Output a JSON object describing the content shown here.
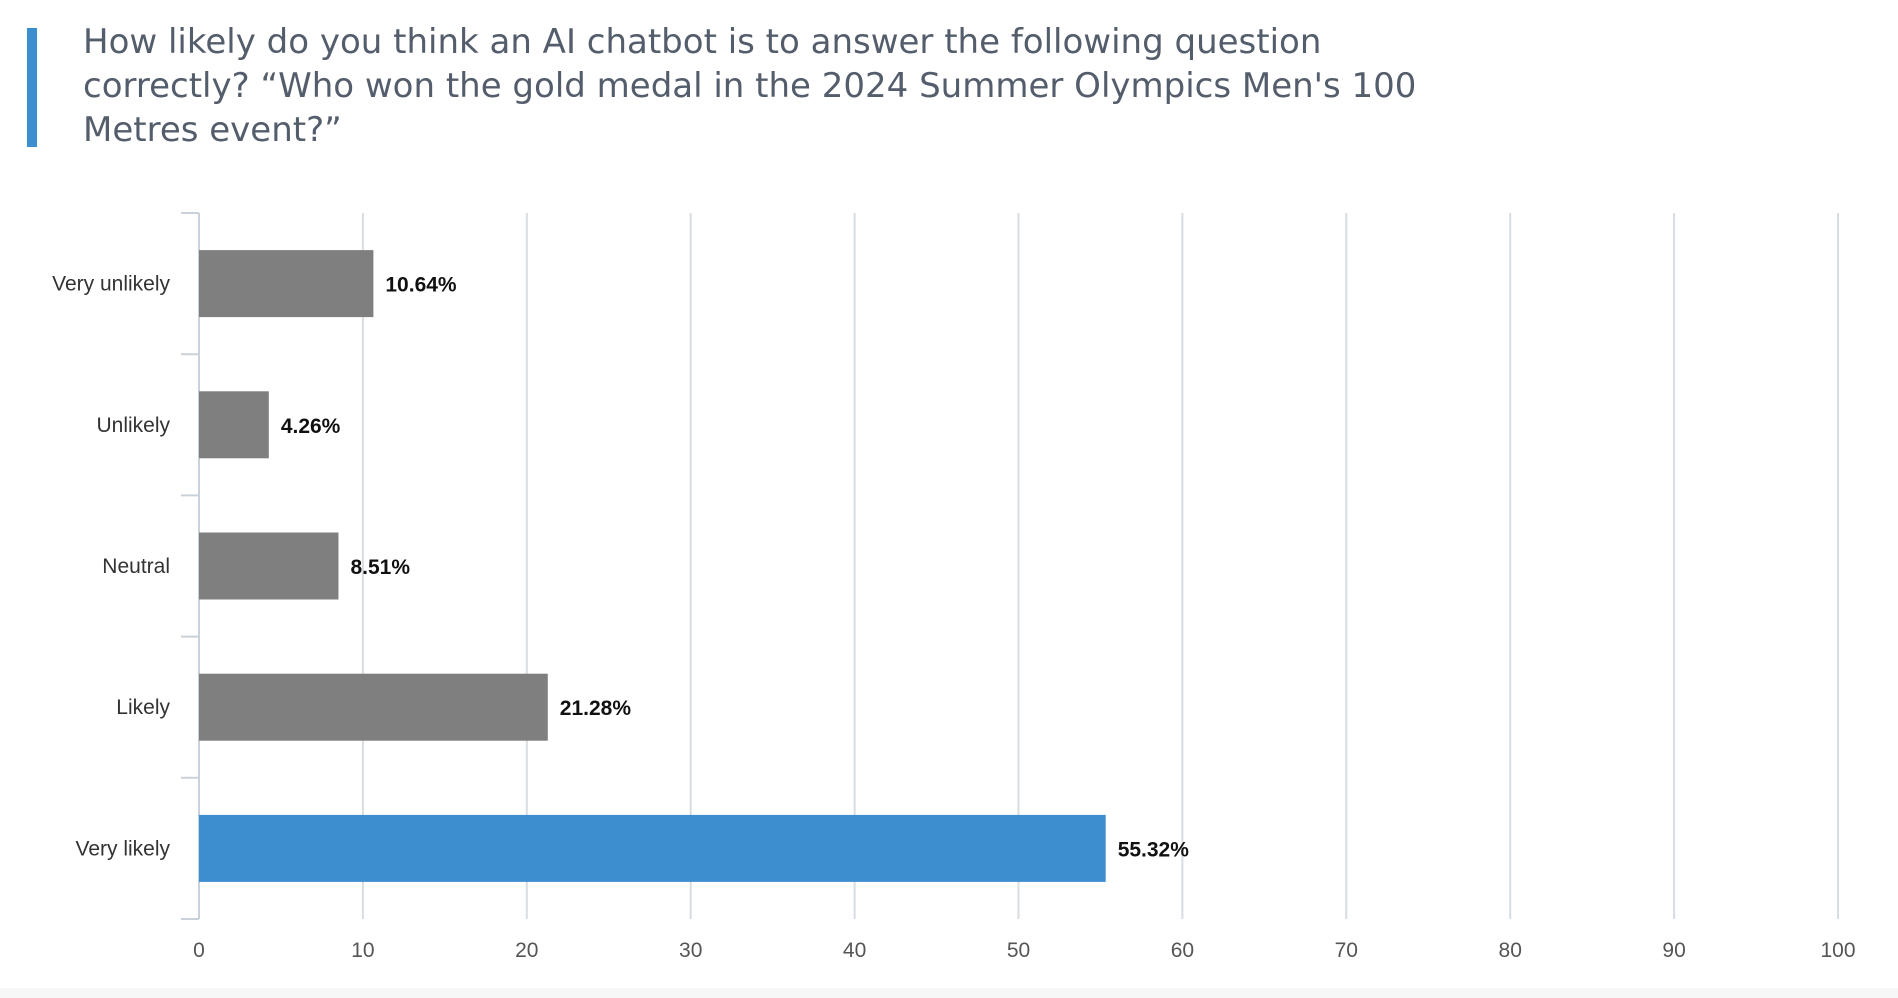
{
  "chart_data": {
    "type": "bar",
    "orientation": "horizontal",
    "title": "How likely do you think an AI chatbot is to answer the following question correctly?  “Who won the gold medal in the 2024 Summer Olympics Men's 100 Metres event?”",
    "categories": [
      "Very unlikely",
      "Unlikely",
      "Neutral",
      "Likely",
      "Very likely"
    ],
    "values": [
      10.64,
      4.26,
      8.51,
      21.28,
      55.32
    ],
    "value_labels": [
      "10.64%",
      "4.26%",
      "8.51%",
      "21.28%",
      "55.32%"
    ],
    "xlim": [
      0,
      100
    ],
    "xticks": [
      0,
      10,
      20,
      30,
      40,
      50,
      60,
      70,
      80,
      90,
      100
    ],
    "grid": "vertical",
    "legend": "none",
    "colors": {
      "default": "#7f7f7f",
      "highlight": "#3d8ecf",
      "highlight_category": "Very likely",
      "accent": "#3d8ecf",
      "title": "#545d6b",
      "grid": "#d8dde2"
    }
  }
}
